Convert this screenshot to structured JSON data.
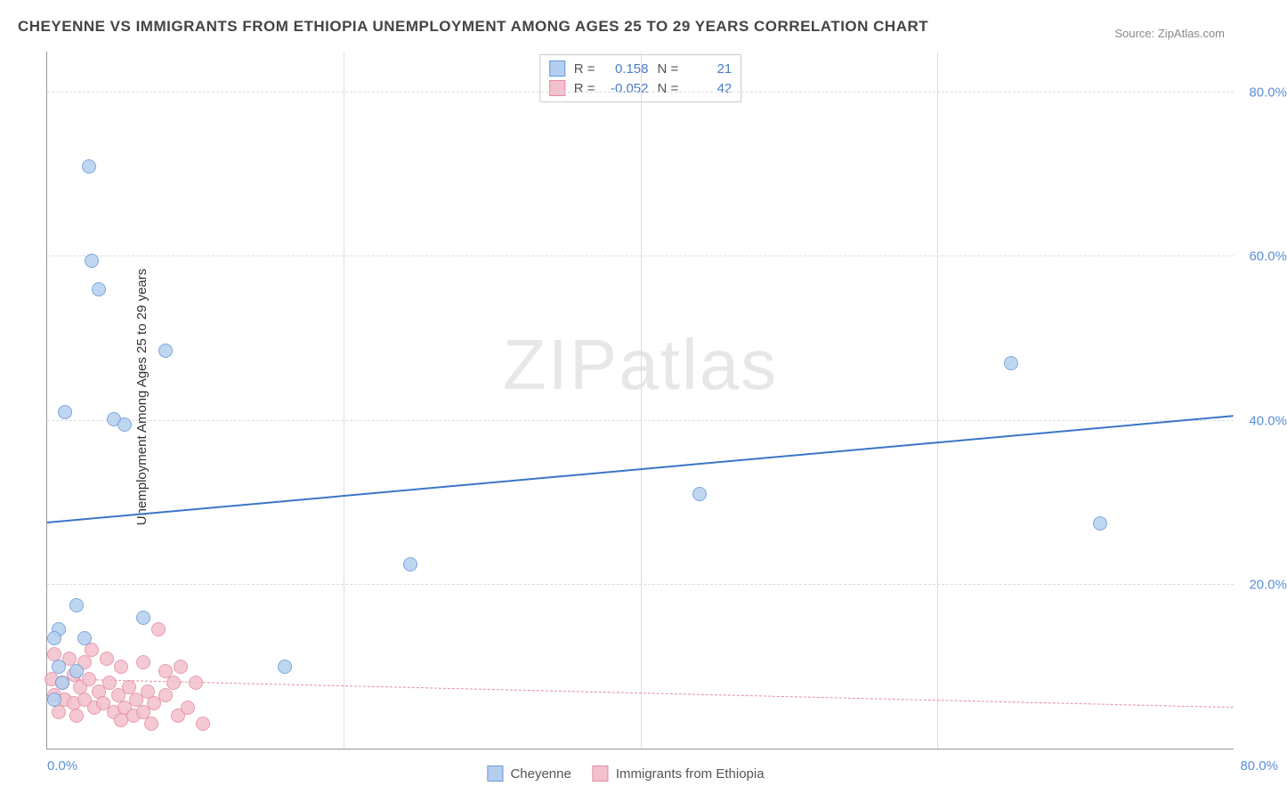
{
  "title": "CHEYENNE VS IMMIGRANTS FROM ETHIOPIA UNEMPLOYMENT AMONG AGES 25 TO 29 YEARS CORRELATION CHART",
  "source": "Source: ZipAtlas.com",
  "watermark_a": "ZIP",
  "watermark_b": "atlas",
  "ylabel": "Unemployment Among Ages 25 to 29 years",
  "chart": {
    "type": "scatter",
    "xlim": [
      0,
      80
    ],
    "ylim": [
      0,
      85
    ],
    "yticks": [
      {
        "value": 20,
        "label": "20.0%"
      },
      {
        "value": 40,
        "label": "40.0%"
      },
      {
        "value": 60,
        "label": "60.0%"
      },
      {
        "value": 80,
        "label": "80.0%"
      }
    ],
    "xticks": [
      {
        "value": 0,
        "label": "0.0%",
        "align": "left"
      },
      {
        "value": 80,
        "label": "80.0%",
        "align": "right"
      }
    ],
    "vgrid": [
      20,
      40,
      60
    ],
    "grid_color": "#dddddd",
    "marker_radius": 8,
    "series": [
      {
        "name": "Cheyenne",
        "fill": "#b4cfee",
        "stroke": "#6699d8",
        "R": "0.158",
        "N": "21",
        "trend": {
          "x1": 0,
          "y1": 27.5,
          "x2": 80,
          "y2": 40.5,
          "color": "#3a76c6",
          "width": 2,
          "dashed": false
        },
        "points": [
          {
            "x": 2.8,
            "y": 71.0
          },
          {
            "x": 3.0,
            "y": 59.5
          },
          {
            "x": 3.5,
            "y": 56.0
          },
          {
            "x": 8.0,
            "y": 48.5
          },
          {
            "x": 1.2,
            "y": 41.0
          },
          {
            "x": 4.5,
            "y": 40.2
          },
          {
            "x": 5.2,
            "y": 39.5
          },
          {
            "x": 44.0,
            "y": 31.0
          },
          {
            "x": 65.0,
            "y": 47.0
          },
          {
            "x": 71.0,
            "y": 27.5
          },
          {
            "x": 24.5,
            "y": 22.5
          },
          {
            "x": 2.0,
            "y": 17.5
          },
          {
            "x": 6.5,
            "y": 16.0
          },
          {
            "x": 0.8,
            "y": 14.5
          },
          {
            "x": 0.5,
            "y": 13.5
          },
          {
            "x": 2.5,
            "y": 13.5
          },
          {
            "x": 0.8,
            "y": 10.0
          },
          {
            "x": 2.0,
            "y": 9.5
          },
          {
            "x": 16.0,
            "y": 10.0
          },
          {
            "x": 1.0,
            "y": 8.0
          },
          {
            "x": 0.5,
            "y": 6.0
          }
        ]
      },
      {
        "name": "Immigrants from Ethiopia",
        "fill": "#f3c0cd",
        "stroke": "#e68aa3",
        "R": "-0.052",
        "N": "42",
        "trend": {
          "x1": 0,
          "y1": 8.5,
          "x2": 80,
          "y2": 5.0,
          "color": "#e68aa3",
          "width": 1.5,
          "dashed": true
        },
        "points": [
          {
            "x": 0.5,
            "y": 11.5
          },
          {
            "x": 1.5,
            "y": 11.0
          },
          {
            "x": 2.5,
            "y": 10.5
          },
          {
            "x": 3.0,
            "y": 12.0
          },
          {
            "x": 4.0,
            "y": 11.0
          },
          {
            "x": 5.0,
            "y": 10.0
          },
          {
            "x": 6.5,
            "y": 10.5
          },
          {
            "x": 7.5,
            "y": 14.5
          },
          {
            "x": 8.0,
            "y": 9.5
          },
          {
            "x": 8.5,
            "y": 8.0
          },
          {
            "x": 9.0,
            "y": 10.0
          },
          {
            "x": 0.3,
            "y": 8.5
          },
          {
            "x": 1.0,
            "y": 8.0
          },
          {
            "x": 1.8,
            "y": 9.0
          },
          {
            "x": 2.2,
            "y": 7.5
          },
          {
            "x": 2.8,
            "y": 8.5
          },
          {
            "x": 3.5,
            "y": 7.0
          },
          {
            "x": 4.2,
            "y": 8.0
          },
          {
            "x": 4.8,
            "y": 6.5
          },
          {
            "x": 5.5,
            "y": 7.5
          },
          {
            "x": 6.0,
            "y": 6.0
          },
          {
            "x": 6.8,
            "y": 7.0
          },
          {
            "x": 0.5,
            "y": 6.5
          },
          {
            "x": 1.2,
            "y": 6.0
          },
          {
            "x": 1.8,
            "y": 5.5
          },
          {
            "x": 2.5,
            "y": 6.0
          },
          {
            "x": 3.2,
            "y": 5.0
          },
          {
            "x": 3.8,
            "y": 5.5
          },
          {
            "x": 4.5,
            "y": 4.5
          },
          {
            "x": 5.2,
            "y": 5.0
          },
          {
            "x": 5.8,
            "y": 4.0
          },
          {
            "x": 6.5,
            "y": 4.5
          },
          {
            "x": 7.2,
            "y": 5.5
          },
          {
            "x": 8.0,
            "y": 6.5
          },
          {
            "x": 8.8,
            "y": 4.0
          },
          {
            "x": 9.5,
            "y": 5.0
          },
          {
            "x": 10.0,
            "y": 8.0
          },
          {
            "x": 10.5,
            "y": 3.0
          },
          {
            "x": 0.8,
            "y": 4.5
          },
          {
            "x": 2.0,
            "y": 4.0
          },
          {
            "x": 5.0,
            "y": 3.5
          },
          {
            "x": 7.0,
            "y": 3.0
          }
        ]
      }
    ]
  },
  "legend_heading_R": "R =",
  "legend_heading_N": "N ="
}
